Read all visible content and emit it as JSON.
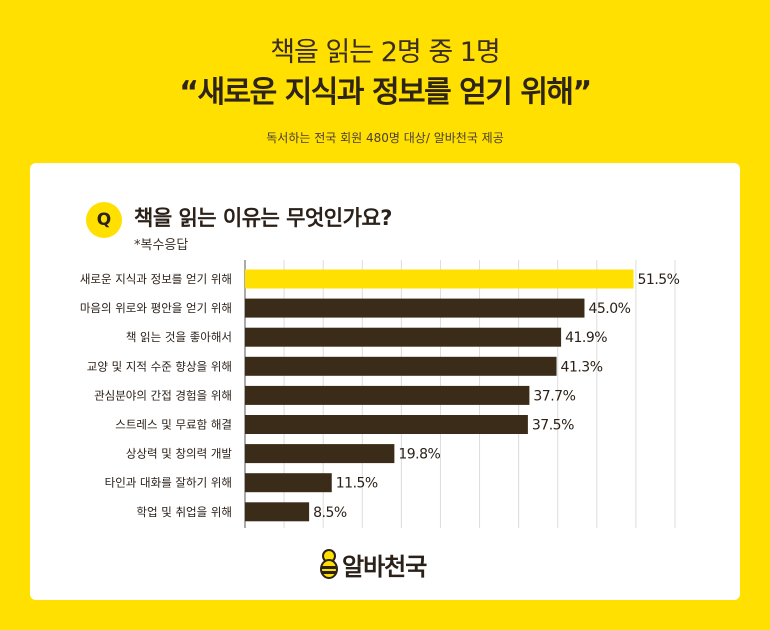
{
  "header": {
    "headline": "책을 읽는 2명 중 1명",
    "subhead": "“새로운 지식과 정보를 얻기 위해”",
    "source": "독서하는 전국 회원 480명 대상/ 알바천국 제공"
  },
  "question": {
    "badge": "Q",
    "text": "책을 읽는 이유는 무엇인가요?",
    "note": "*복수응답"
  },
  "chart_data": {
    "type": "bar",
    "orientation": "horizontal",
    "categories": [
      "새로운 지식과 정보를 얻기 위해",
      "마음의 위로와 평안을 얻기 위해",
      "책 읽는 것을 좋아해서",
      "교양 및 지적 수준 향상을 위해",
      "관심분야의 간접 경험을 위해",
      "스트레스 및 무료함 해결",
      "상상력 및 창의력 개발",
      "타인과 대화를 잘하기 위해",
      "학업 및 취업을 위해"
    ],
    "values": [
      51.5,
      45.0,
      41.9,
      41.3,
      37.7,
      37.5,
      19.8,
      11.5,
      8.5
    ],
    "value_labels": [
      "51.5%",
      "45.0%",
      "41.9%",
      "41.3%",
      "37.7%",
      "37.5%",
      "19.8%",
      "11.5%",
      "8.5%"
    ],
    "xlim": [
      0,
      57
    ],
    "grid": true,
    "highlight_color": "#FFE000",
    "bar_color": "#3B2C1A"
  },
  "brand": {
    "name": "알바천국",
    "logo": "bee-icon"
  }
}
